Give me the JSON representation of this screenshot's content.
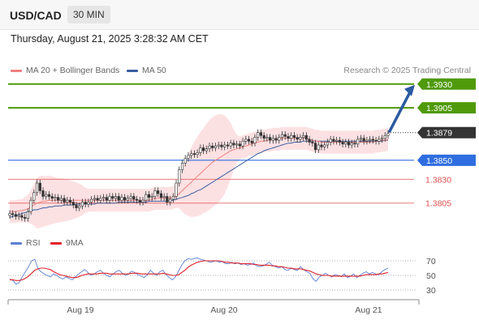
{
  "header": {
    "symbol": "USD/CAD",
    "timeframe": "30 MIN",
    "datetime": "Thursday, August 21, 2025 3:28:32 AM CET"
  },
  "legend": {
    "ma20_label": "MA 20 + Bollinger Bands",
    "ma50_label": "MA 50",
    "credit": "Research © 2025 Trading Central",
    "rsi_label": "RSI",
    "ma9_label": "9MA"
  },
  "colors": {
    "resistance": "#4f9a0a",
    "support": "#2f6ee0",
    "pivot_level": "#e05050",
    "price_box": "#333333",
    "arrow": "#2a5aa0",
    "ma20": "#f08080",
    "ma50": "#3a5fa0",
    "bollinger_fill": "#fbd9dc",
    "candle": "#333333",
    "rsi": "#5b7fd6",
    "ma9": "#e0202a"
  },
  "chart_data": [
    {
      "type": "candlestick",
      "x_ticks": [
        "Aug 19",
        "Aug 20",
        "Aug 21"
      ],
      "y_range": [
        1.3775,
        1.394
      ],
      "levels": [
        {
          "value": 1.393,
          "label": "1.3930",
          "kind": "resistance"
        },
        {
          "value": 1.3905,
          "label": "1.3905",
          "kind": "resistance"
        },
        {
          "value": 1.3879,
          "label": "1.3879",
          "kind": "current"
        },
        {
          "value": 1.385,
          "label": "1.3850",
          "kind": "pivot"
        },
        {
          "value": 1.383,
          "label": "1.3830",
          "kind": "support"
        },
        {
          "value": 1.3805,
          "label": "1.3805",
          "kind": "support"
        }
      ],
      "close": [
        1.3794,
        1.3793,
        1.3791,
        1.3792,
        1.379,
        1.3789,
        1.3796,
        1.3808,
        1.3816,
        1.3826,
        1.3818,
        1.3812,
        1.3814,
        1.3812,
        1.381,
        1.3811,
        1.3808,
        1.381,
        1.3806,
        1.3808,
        1.3806,
        1.3803,
        1.38,
        1.3802,
        1.3806,
        1.3804,
        1.3806,
        1.3809,
        1.381,
        1.3808,
        1.381,
        1.3811,
        1.3808,
        1.3812,
        1.381,
        1.3812,
        1.3808,
        1.3811,
        1.3808,
        1.381,
        1.3812,
        1.3809,
        1.3808,
        1.3806,
        1.3808,
        1.3814,
        1.3811,
        1.3812,
        1.3818,
        1.3815,
        1.3811,
        1.3812,
        1.3806,
        1.3809,
        1.3812,
        1.3826,
        1.384,
        1.3847,
        1.3852,
        1.3855,
        1.3857,
        1.3856,
        1.3858,
        1.3863,
        1.386,
        1.3862,
        1.3865,
        1.3863,
        1.3865,
        1.3866,
        1.3864,
        1.3866,
        1.3865,
        1.3868,
        1.3866,
        1.3867,
        1.3865,
        1.387,
        1.3872,
        1.387,
        1.3868,
        1.3874,
        1.3879,
        1.3876,
        1.3873,
        1.3874,
        1.3871,
        1.3873,
        1.3871,
        1.3874,
        1.3877,
        1.3875,
        1.3873,
        1.3876,
        1.3874,
        1.3872,
        1.3874,
        1.3876,
        1.3872,
        1.3869,
        1.3868,
        1.3861,
        1.3866,
        1.3864,
        1.3866,
        1.3869,
        1.3872,
        1.387,
        1.3871,
        1.3869,
        1.3867,
        1.3869,
        1.3866,
        1.3868,
        1.3867,
        1.3872,
        1.3873,
        1.387,
        1.3871,
        1.3872,
        1.3871,
        1.387,
        1.3872,
        1.3873,
        1.3876,
        1.3878
      ],
      "ma20": [
        1.3796,
        1.3796,
        1.3796,
        1.3797,
        1.3797,
        1.3798,
        1.3799,
        1.3801,
        1.3803,
        1.3805,
        1.3806,
        1.3807,
        1.3807,
        1.3808,
        1.3808,
        1.3808,
        1.3808,
        1.3808,
        1.3808,
        1.3808,
        1.3808,
        1.3808,
        1.3808,
        1.3808,
        1.3808,
        1.3808,
        1.3808,
        1.3808,
        1.3808,
        1.3808,
        1.3808,
        1.3808,
        1.3808,
        1.3808,
        1.3808,
        1.3808,
        1.3808,
        1.3808,
        1.3808,
        1.3808,
        1.3808,
        1.3808,
        1.3808,
        1.3808,
        1.3808,
        1.3808,
        1.3808,
        1.3809,
        1.381,
        1.381,
        1.381,
        1.381,
        1.381,
        1.381,
        1.3811,
        1.3812,
        1.3815,
        1.3818,
        1.3821,
        1.3824,
        1.3827,
        1.383,
        1.3833,
        1.3836,
        1.3839,
        1.3842,
        1.3845,
        1.3848,
        1.385,
        1.3852,
        1.3854,
        1.3856,
        1.3858,
        1.386,
        1.3861,
        1.3862,
        1.3863,
        1.3864,
        1.3865,
        1.3866,
        1.3867,
        1.3868,
        1.3869,
        1.387,
        1.387,
        1.3871,
        1.3871,
        1.3872,
        1.3872,
        1.3872,
        1.3873,
        1.3873,
        1.3873,
        1.3873,
        1.3873,
        1.3873,
        1.3873,
        1.3873,
        1.3873,
        1.3872,
        1.3871,
        1.387,
        1.387,
        1.3869,
        1.3869,
        1.3869,
        1.3869,
        1.3869,
        1.3869,
        1.3869,
        1.3869,
        1.3869,
        1.3869,
        1.3869,
        1.3869,
        1.3869,
        1.3869,
        1.3869,
        1.3869,
        1.3869,
        1.3869,
        1.387,
        1.387,
        1.3871,
        1.3871,
        1.3872
      ],
      "ma50": [
        1.379,
        1.3791,
        1.3792,
        1.3793,
        1.3794,
        1.3795,
        1.3796,
        1.3797,
        1.3798,
        1.3798,
        1.3799,
        1.38,
        1.38,
        1.3801,
        1.3801,
        1.3802,
        1.3802,
        1.3802,
        1.3803,
        1.3803,
        1.3803,
        1.3803,
        1.3804,
        1.3804,
        1.3804,
        1.3804,
        1.3804,
        1.3804,
        1.3804,
        1.3805,
        1.3805,
        1.3805,
        1.3805,
        1.3805,
        1.3805,
        1.3805,
        1.3806,
        1.3806,
        1.3806,
        1.3806,
        1.3806,
        1.3806,
        1.3806,
        1.3806,
        1.3806,
        1.3806,
        1.3807,
        1.3807,
        1.3807,
        1.3807,
        1.3807,
        1.3807,
        1.3807,
        1.3808,
        1.3808,
        1.3809,
        1.381,
        1.3811,
        1.3812,
        1.3813,
        1.3815,
        1.3816,
        1.3818,
        1.3819,
        1.3821,
        1.3823,
        1.3825,
        1.3827,
        1.3829,
        1.3831,
        1.3833,
        1.3835,
        1.3837,
        1.3839,
        1.3841,
        1.3843,
        1.3845,
        1.3847,
        1.3849,
        1.3851,
        1.3853,
        1.3855,
        1.3857,
        1.3858,
        1.386,
        1.3861,
        1.3862,
        1.3863,
        1.3864,
        1.3865,
        1.3866,
        1.3867,
        1.3868,
        1.3868,
        1.3869,
        1.3869,
        1.3869,
        1.387,
        1.387,
        1.387,
        1.387,
        1.387,
        1.387,
        1.387,
        1.387,
        1.387,
        1.387,
        1.387,
        1.387,
        1.387,
        1.387,
        1.387,
        1.387,
        1.387,
        1.387,
        1.387,
        1.387,
        1.387,
        1.387,
        1.387,
        1.387,
        1.387,
        1.387,
        1.387,
        1.3871,
        1.3871
      ]
    },
    {
      "type": "line",
      "series": [
        {
          "name": "RSI"
        },
        {
          "name": "9MA"
        }
      ],
      "y_ticks": [
        70,
        50,
        30
      ],
      "y_range": [
        20,
        80
      ],
      "rsi": [
        45,
        43,
        38,
        40,
        48,
        55,
        62,
        70,
        72,
        60,
        55,
        52,
        50,
        48,
        52,
        50,
        47,
        45,
        48,
        46,
        44,
        48,
        52,
        55,
        58,
        54,
        50,
        52,
        55,
        57,
        53,
        50,
        48,
        52,
        55,
        57,
        53,
        50,
        52,
        56,
        54,
        51,
        49,
        47,
        51,
        57,
        53,
        50,
        55,
        57,
        51,
        47,
        44,
        48,
        56,
        64,
        70,
        73,
        72,
        73,
        74,
        72,
        71,
        70,
        68,
        69,
        70,
        68,
        69,
        66,
        66,
        68,
        66,
        67,
        65,
        66,
        64,
        65,
        67,
        63,
        62,
        63,
        65,
        68,
        64,
        62,
        60,
        62,
        58,
        57,
        60,
        58,
        57,
        62,
        58,
        55,
        53,
        45,
        42,
        48,
        50,
        53,
        50,
        48,
        51,
        50,
        48,
        52,
        47,
        49,
        52,
        47,
        50,
        53,
        55,
        52,
        54,
        52,
        51,
        55,
        58,
        60
      ],
      "ma9": [
        44,
        44,
        43,
        43,
        44,
        46,
        49,
        53,
        57,
        59,
        60,
        60,
        59,
        58,
        55,
        53,
        51,
        50,
        49,
        48,
        47,
        47,
        48,
        50,
        51,
        52,
        52,
        52,
        52,
        53,
        53,
        53,
        52,
        52,
        52,
        52,
        52,
        52,
        52,
        53,
        53,
        53,
        52,
        52,
        52,
        52,
        52,
        52,
        52,
        53,
        52,
        51,
        50,
        50,
        51,
        54,
        57,
        61,
        64,
        66,
        68,
        69,
        70,
        70,
        70,
        70,
        70,
        70,
        69,
        68,
        68,
        67,
        67,
        67,
        66,
        66,
        66,
        66,
        65,
        65,
        64,
        64,
        64,
        64,
        63,
        63,
        62,
        62,
        61,
        60,
        60,
        59,
        59,
        59,
        58,
        57,
        56,
        54,
        52,
        51,
        50,
        50,
        50,
        49,
        49,
        49,
        49,
        49,
        49,
        49,
        49,
        49,
        49,
        50,
        51,
        51,
        51,
        51,
        52,
        52,
        53,
        54
      ]
    }
  ]
}
